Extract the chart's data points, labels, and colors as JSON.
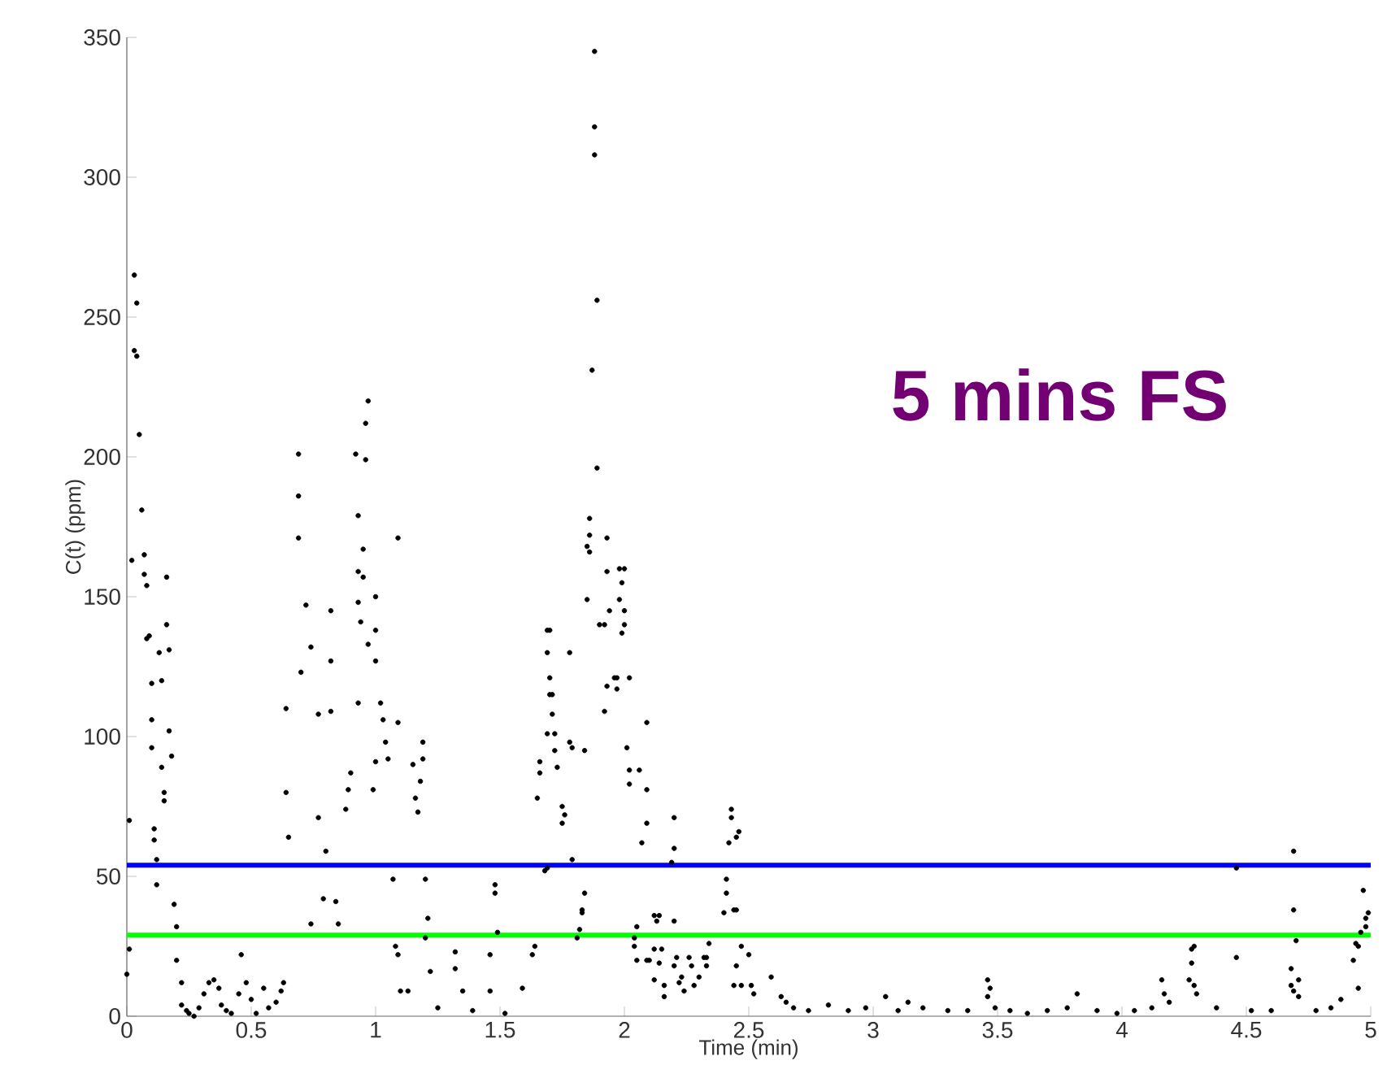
{
  "chart_data": {
    "type": "scatter",
    "xlabel": "Time (min)",
    "ylabel": "C(t) (ppm)",
    "annotations": [
      "5 mins FS"
    ],
    "xlim": [
      0,
      5
    ],
    "xticks": [
      0,
      0.5,
      1,
      1.5,
      2,
      2.5,
      3,
      3.5,
      4,
      4.5,
      5
    ],
    "ylim": [
      0,
      350
    ],
    "yticks": [
      0,
      50,
      100,
      150,
      200,
      250,
      300,
      350
    ],
    "marker": "circle",
    "ref_lines": [
      {
        "axis": "y",
        "value": 54,
        "color": "#0000ff"
      },
      {
        "axis": "y",
        "value": 29,
        "color": "#00ff00"
      }
    ],
    "series": [
      {
        "color": "#000000",
        "x": [
          0.0,
          0.01,
          0.01,
          0.02,
          0.03,
          0.03,
          0.04,
          0.04,
          0.05,
          0.06,
          0.07,
          0.07,
          0.08,
          0.08,
          0.09,
          0.1,
          0.1,
          0.1,
          0.11,
          0.11,
          0.12,
          0.12,
          0.13,
          0.14,
          0.14,
          0.15,
          0.15,
          0.16,
          0.16,
          0.17,
          0.17,
          0.18,
          0.19,
          0.2,
          0.2,
          0.22,
          0.22,
          0.24,
          0.25,
          0.27,
          0.29,
          0.31,
          0.33,
          0.35,
          0.37,
          0.38,
          0.4,
          0.42,
          0.45,
          0.46,
          0.48,
          0.5,
          0.52,
          0.55,
          0.57,
          0.6,
          0.62,
          0.63,
          0.64,
          0.64,
          0.65,
          0.69,
          0.69,
          0.69,
          0.7,
          0.72,
          0.74,
          0.74,
          0.77,
          0.77,
          0.79,
          0.8,
          0.82,
          0.82,
          0.82,
          0.84,
          0.85,
          0.88,
          0.89,
          0.9,
          0.92,
          0.93,
          0.93,
          0.93,
          0.93,
          0.94,
          0.95,
          0.95,
          0.96,
          0.96,
          0.97,
          0.97,
          0.99,
          1.0,
          1.0,
          1.0,
          1.0,
          1.02,
          1.03,
          1.04,
          1.05,
          1.07,
          1.08,
          1.09,
          1.09,
          1.09,
          1.1,
          1.13,
          1.15,
          1.16,
          1.17,
          1.18,
          1.19,
          1.19,
          1.2,
          1.2,
          1.21,
          1.22,
          1.25,
          1.32,
          1.32,
          1.35,
          1.39,
          1.46,
          1.46,
          1.48,
          1.48,
          1.49,
          1.52,
          1.59,
          1.63,
          1.64,
          1.65,
          1.66,
          1.66,
          1.68,
          1.69,
          1.69,
          1.69,
          1.69,
          1.7,
          1.7,
          1.7,
          1.71,
          1.71,
          1.72,
          1.72,
          1.73,
          1.75,
          1.75,
          1.76,
          1.78,
          1.78,
          1.79,
          1.79,
          1.81,
          1.82,
          1.83,
          1.83,
          1.84,
          1.84,
          1.85,
          1.85,
          1.86,
          1.86,
          1.86,
          1.87,
          1.88,
          1.88,
          1.88,
          1.89,
          1.89,
          1.9,
          1.92,
          1.92,
          1.93,
          1.93,
          1.93,
          1.94,
          1.96,
          1.97,
          1.97,
          1.98,
          1.98,
          1.99,
          1.99,
          2.0,
          2.0,
          2.0,
          2.01,
          2.02,
          2.02,
          2.02,
          2.04,
          2.04,
          2.05,
          2.05,
          2.06,
          2.07,
          2.09,
          2.09,
          2.09,
          2.09,
          2.1,
          2.12,
          2.12,
          2.12,
          2.13,
          2.14,
          2.14,
          2.15,
          2.16,
          2.16,
          2.19,
          2.2,
          2.2,
          2.2,
          2.2,
          2.21,
          2.22,
          2.23,
          2.24,
          2.26,
          2.27,
          2.28,
          2.3,
          2.32,
          2.33,
          2.33,
          2.34,
          2.4,
          2.41,
          2.41,
          2.42,
          2.43,
          2.43,
          2.44,
          2.44,
          2.45,
          2.45,
          2.45,
          2.46,
          2.47,
          2.47,
          2.5,
          2.51,
          2.52,
          2.59,
          2.63,
          2.65,
          2.68,
          2.74,
          2.82,
          2.9,
          2.97,
          3.05,
          3.1,
          3.14,
          3.2,
          3.3,
          3.38,
          3.46,
          3.46,
          3.47,
          3.49,
          3.55,
          3.62,
          3.7,
          3.78,
          3.82,
          3.9,
          3.98,
          4.05,
          4.12,
          4.16,
          4.17,
          4.19,
          4.27,
          4.28,
          4.28,
          4.29,
          4.29,
          4.3,
          4.38,
          4.46,
          4.46,
          4.52,
          4.6,
          4.68,
          4.68,
          4.69,
          4.69,
          4.69,
          4.7,
          4.71,
          4.71,
          4.78,
          4.84,
          4.88,
          4.93,
          4.94,
          4.95,
          4.95,
          4.96,
          4.97,
          4.98,
          4.98,
          4.99
        ],
        "values": [
          15,
          24,
          70,
          163,
          265,
          238,
          255,
          236,
          208,
          181,
          165,
          158,
          154,
          135,
          136,
          119,
          106,
          96,
          67,
          63,
          56,
          47,
          130,
          120,
          89,
          80,
          77,
          157,
          140,
          131,
          102,
          93,
          40,
          32,
          20,
          12,
          4,
          2,
          1,
          0,
          3,
          8,
          12,
          13,
          10,
          4,
          2,
          1,
          8,
          22,
          12,
          6,
          1,
          10,
          3,
          5,
          9,
          12,
          110,
          80,
          64,
          201,
          186,
          171,
          123,
          147,
          132,
          33,
          108,
          71,
          42,
          59,
          127,
          109,
          145,
          41,
          33,
          74,
          81,
          87,
          201,
          179,
          159,
          148,
          112,
          141,
          167,
          157,
          212,
          199,
          220,
          133,
          81,
          150,
          138,
          127,
          91,
          112,
          106,
          98,
          92,
          49,
          25,
          171,
          105,
          22,
          9,
          9,
          90,
          78,
          73,
          84,
          98,
          92,
          49,
          28,
          35,
          16,
          3,
          23,
          17,
          9,
          2,
          22,
          9,
          47,
          44,
          30,
          1,
          10,
          22,
          25,
          78,
          87,
          91,
          52,
          138,
          130,
          101,
          53,
          121,
          115,
          138,
          115,
          108,
          101,
          95,
          89,
          75,
          69,
          72,
          130,
          98,
          96,
          56,
          28,
          31,
          38,
          37,
          95,
          44,
          149,
          168,
          166,
          172,
          178,
          231,
          345,
          318,
          308,
          256,
          196,
          140,
          109,
          140,
          171,
          118,
          159,
          145,
          121,
          121,
          117,
          149,
          160,
          155,
          137,
          160,
          145,
          140,
          96,
          121,
          88,
          83,
          28,
          25,
          32,
          20,
          88,
          62,
          105,
          81,
          69,
          20,
          20,
          36,
          24,
          13,
          34,
          36,
          19,
          24,
          11,
          7,
          55,
          71,
          60,
          18,
          34,
          21,
          12,
          14,
          9,
          21,
          18,
          11,
          14,
          21,
          18,
          21,
          26,
          37,
          44,
          49,
          62,
          74,
          71,
          38,
          11,
          38,
          18,
          64,
          66,
          25,
          11,
          22,
          11,
          8,
          14,
          7,
          5,
          3,
          2,
          4,
          2,
          3,
          7,
          2,
          5,
          3,
          2,
          2,
          13,
          7,
          10,
          3,
          2,
          1,
          2,
          3,
          8,
          2,
          1,
          2,
          3,
          13,
          8,
          5,
          13,
          19,
          24,
          25,
          11,
          8,
          3,
          21,
          53,
          2,
          2,
          17,
          11,
          59,
          38,
          9,
          27,
          13,
          7,
          2,
          3,
          6,
          20,
          26,
          25,
          10,
          30,
          45,
          32,
          35,
          37
        ]
      }
    ]
  }
}
